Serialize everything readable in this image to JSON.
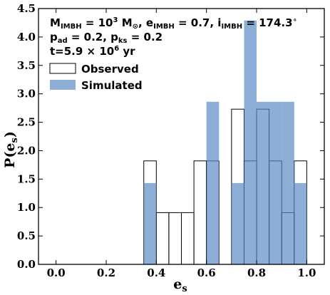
{
  "chart_data": {
    "type": "bar",
    "xlabel": {
      "main": "e",
      "sub": "s"
    },
    "ylabel": {
      "pre": "P(e",
      "sub": "s",
      "post": ")"
    },
    "xlim": [
      -0.07,
      1.07
    ],
    "ylim": [
      0.0,
      4.5
    ],
    "xticks": [
      "0.0",
      "0.2",
      "0.4",
      "0.6",
      "0.8",
      "1.0"
    ],
    "yticks": [
      "0.0",
      "0.5",
      "1.0",
      "1.5",
      "2.0",
      "2.5",
      "3.0",
      "3.5",
      "4.0",
      "4.5"
    ],
    "bin_width": 0.05,
    "legend_position": "upper-left",
    "annotation": {
      "line1": {
        "m": "M",
        "m_sub": "IMBH",
        "eq1": " = 10",
        "exp": "3",
        "msun": " M",
        "sun": "⊙",
        "e_part": ", e",
        "e_sub": "IMBH",
        "e_val": " = 0.7, i",
        "i_sub": "IMBH",
        "i_val": " = 174.3",
        "deg": "∘"
      },
      "line2": {
        "p1": "p",
        "p1_sub": "ad",
        "p1_val": " = 0.2, p",
        "p2_sub": "ks",
        "p2_val": " = 0.2"
      },
      "line3": {
        "t": "t=5.9 × 10",
        "exp": "6",
        "unit": " yr"
      }
    },
    "series": [
      {
        "name": "Observed",
        "style": "outline",
        "edge_color": "#000000",
        "bins": [
          {
            "left": 0.35,
            "value": 1.82
          },
          {
            "left": 0.4,
            "value": 0.91
          },
          {
            "left": 0.45,
            "value": 0.91
          },
          {
            "left": 0.5,
            "value": 0.91
          },
          {
            "left": 0.55,
            "value": 1.82
          },
          {
            "left": 0.6,
            "value": 1.82
          },
          {
            "left": 0.7,
            "value": 2.73
          },
          {
            "left": 0.75,
            "value": 1.82
          },
          {
            "left": 0.8,
            "value": 2.73
          },
          {
            "left": 0.85,
            "value": 1.82
          },
          {
            "left": 0.9,
            "value": 0.91
          },
          {
            "left": 0.95,
            "value": 1.82
          }
        ]
      },
      {
        "name": "Simulated",
        "style": "filled",
        "color": "#5b8cc6",
        "opacity": 0.7,
        "bins": [
          {
            "left": 0.35,
            "value": 1.43
          },
          {
            "left": 0.6,
            "value": 2.86
          },
          {
            "left": 0.7,
            "value": 1.43
          },
          {
            "left": 0.75,
            "value": 4.29
          },
          {
            "left": 0.8,
            "value": 2.86
          },
          {
            "left": 0.85,
            "value": 2.86
          },
          {
            "left": 0.9,
            "value": 2.86
          },
          {
            "left": 0.95,
            "value": 1.43
          }
        ]
      }
    ]
  }
}
